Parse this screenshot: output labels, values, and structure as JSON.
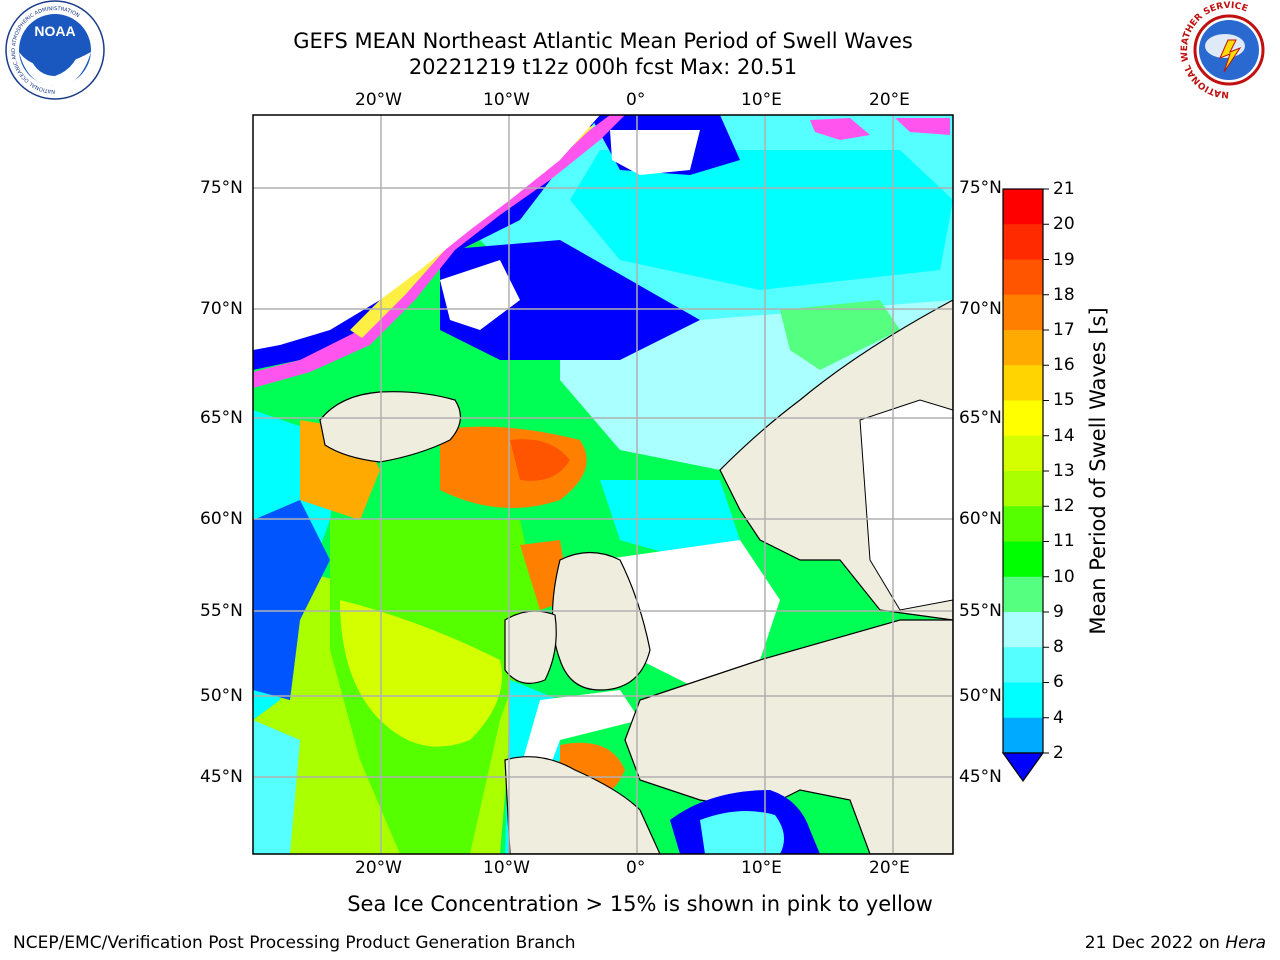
{
  "header": {
    "title_line1": "GEFS MEAN Northeast Atlantic Mean Period of Swell Waves",
    "title_line2": "20221219 t12z 000h fcst   Max: 20.51"
  },
  "logos": {
    "left": {
      "name": "NOAA",
      "ring_text": "NATIONAL OCEANIC AND ATMOSPHERIC ADMINISTRATION",
      "bottom_text": "U.S. DEPARTMENT OF COMMERCE"
    },
    "right": {
      "ring_text": "NATIONAL WEATHER SERVICE"
    }
  },
  "map": {
    "lon_labels": [
      "20°W",
      "10°W",
      "0°",
      "10°E",
      "20°E"
    ],
    "lat_labels": [
      "75°N",
      "70°N",
      "65°N",
      "60°N",
      "55°N",
      "50°N",
      "45°N"
    ],
    "colors": {
      "land": "#efeddd",
      "ice_pink": "#ff55ee",
      "ice_yellow": "#ffee44",
      "grid": "#b0b0b0"
    }
  },
  "colorbar": {
    "label": "Mean Period of Swell Waves [s]",
    "ticks": [
      "21",
      "20",
      "19",
      "18",
      "17",
      "16",
      "15",
      "14",
      "13",
      "12",
      "11",
      "10",
      "9",
      "8",
      "6",
      "4",
      "2"
    ],
    "colors": [
      "#ff0000",
      "#ff2a00",
      "#ff5500",
      "#ff8000",
      "#ffaa00",
      "#ffd400",
      "#ffff00",
      "#d4ff00",
      "#aaff00",
      "#55ff00",
      "#00ff00",
      "#55ff80",
      "#aaffff",
      "#55ffff",
      "#00ffff",
      "#00aaff",
      "#0055ff"
    ],
    "under_color": "#0000ff"
  },
  "footer": {
    "ice_note": "Sea Ice Concentration > 15% is shown in pink to yellow",
    "left": "NCEP/EMC/Verification Post Processing Product Generation Branch",
    "date": "21 Dec 2022 on",
    "machine": "Hera"
  }
}
